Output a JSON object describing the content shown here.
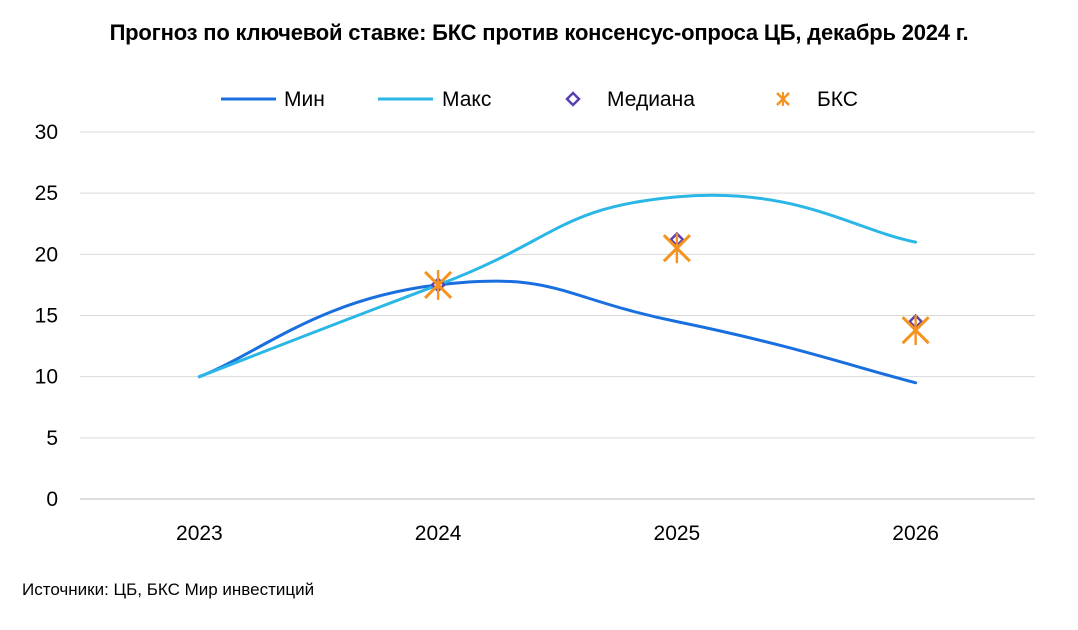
{
  "chart_data": {
    "type": "line",
    "title": "Прогноз по ключевой ставке: БКС против консенсус-опроса ЦБ, декабрь 2024 г.",
    "categories": [
      "2023",
      "2024",
      "2025",
      "2026"
    ],
    "series": [
      {
        "name": "Мин",
        "kind": "line",
        "color": "#1a6fdf",
        "values": [
          10,
          17.5,
          14.5,
          9.5
        ]
      },
      {
        "name": "Макс",
        "kind": "line",
        "color": "#2ab7e6",
        "values": [
          10,
          17.5,
          24.7,
          21
        ]
      },
      {
        "name": "Медиана",
        "kind": "marker-diamond",
        "color": "#5b3fb1",
        "values": [
          null,
          17.5,
          21.2,
          14.5
        ]
      },
      {
        "name": "БКС",
        "kind": "marker-star",
        "color": "#f5931e",
        "values": [
          null,
          17.5,
          20.5,
          13.8
        ]
      }
    ],
    "yticks": [
      "0",
      "5",
      "10",
      "15",
      "20",
      "25",
      "30"
    ],
    "ylim": [
      0,
      30
    ],
    "grid": true,
    "legend_position": "top"
  },
  "source": "Источники: ЦБ, БКС Мир инвестиций"
}
